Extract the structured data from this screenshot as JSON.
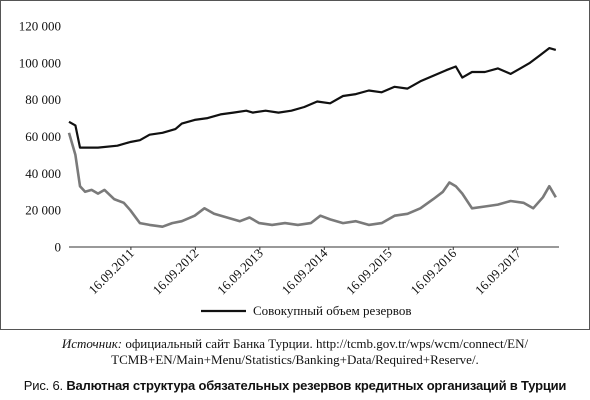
{
  "chart_data": {
    "type": "line",
    "ylim": [
      0,
      120000
    ],
    "y_ticks": [
      "0",
      "20 000",
      "40 000",
      "60 000",
      "80 000",
      "100 000",
      "120 000"
    ],
    "y_tick_values": [
      0,
      20000,
      40000,
      60000,
      80000,
      100000,
      120000
    ],
    "x_ticks": [
      "16.09.2011",
      "16.09.2012",
      "16.09.2013",
      "16.09.2014",
      "16.09.2015",
      "16.09.2016",
      "16.09.2017"
    ],
    "x_tick_values": [
      2011.71,
      2012.71,
      2013.71,
      2014.71,
      2015.71,
      2016.71,
      2017.71
    ],
    "xlim": [
      2010.75,
      2018.35
    ],
    "grid": false,
    "legend_position": "bottom",
    "series": [
      {
        "name": "Совокупный объем резервов",
        "color": "#111111",
        "x": [
          2010.75,
          2010.85,
          2010.92,
          2011.0,
          2011.2,
          2011.5,
          2011.7,
          2011.85,
          2012.0,
          2012.2,
          2012.4,
          2012.5,
          2012.7,
          2012.9,
          2013.1,
          2013.3,
          2013.5,
          2013.6,
          2013.8,
          2014.0,
          2014.2,
          2014.4,
          2014.6,
          2014.8,
          2015.0,
          2015.2,
          2015.4,
          2015.6,
          2015.8,
          2016.0,
          2016.2,
          2016.4,
          2016.6,
          2016.75,
          2016.85,
          2017.0,
          2017.2,
          2017.4,
          2017.6,
          2017.75,
          2017.9,
          2018.05,
          2018.2,
          2018.3
        ],
        "values": [
          68000,
          66000,
          54000,
          54000,
          54000,
          55000,
          57000,
          58000,
          61000,
          62000,
          64000,
          67000,
          69000,
          70000,
          72000,
          73000,
          74000,
          73000,
          74000,
          73000,
          74000,
          76000,
          79000,
          78000,
          82000,
          83000,
          85000,
          84000,
          87000,
          86000,
          90000,
          93000,
          96000,
          98000,
          92000,
          95000,
          95000,
          97000,
          94000,
          97000,
          100000,
          104000,
          108000,
          107000
        ]
      },
      {
        "name": "",
        "color": "#7a7a7a",
        "x": [
          2010.75,
          2010.85,
          2010.92,
          2011.0,
          2011.1,
          2011.2,
          2011.3,
          2011.45,
          2011.6,
          2011.7,
          2011.85,
          2012.0,
          2012.2,
          2012.35,
          2012.5,
          2012.7,
          2012.85,
          2013.0,
          2013.2,
          2013.4,
          2013.55,
          2013.7,
          2013.9,
          2014.1,
          2014.3,
          2014.5,
          2014.65,
          2014.8,
          2015.0,
          2015.2,
          2015.4,
          2015.6,
          2015.8,
          2016.0,
          2016.2,
          2016.4,
          2016.55,
          2016.65,
          2016.75,
          2016.85,
          2017.0,
          2017.2,
          2017.4,
          2017.6,
          2017.8,
          2017.95,
          2018.1,
          2018.2,
          2018.3
        ],
        "values": [
          62000,
          50000,
          33000,
          30000,
          31000,
          29000,
          31000,
          26000,
          24000,
          20000,
          13000,
          12000,
          11000,
          13000,
          14000,
          17000,
          21000,
          18000,
          16000,
          14000,
          16000,
          13000,
          12000,
          13000,
          12000,
          13000,
          17000,
          15000,
          13000,
          14000,
          12000,
          13000,
          17000,
          18000,
          21000,
          26000,
          30000,
          35000,
          33000,
          29000,
          21000,
          22000,
          23000,
          25000,
          24000,
          21000,
          27000,
          33000,
          27000
        ]
      }
    ]
  },
  "source": {
    "label": "Источник:",
    "line1": "официальный сайт Банка Турции. http://tcmb.gov.tr/wps/wcm/connect/EN/",
    "line2": "TCMB+EN/Main+Menu/Statistics/Banking+Data/Required+Reserve/."
  },
  "caption": {
    "number": "Рис. 6.",
    "title": "Валютная структура обязательных резервов кредитных организаций в Турции"
  }
}
